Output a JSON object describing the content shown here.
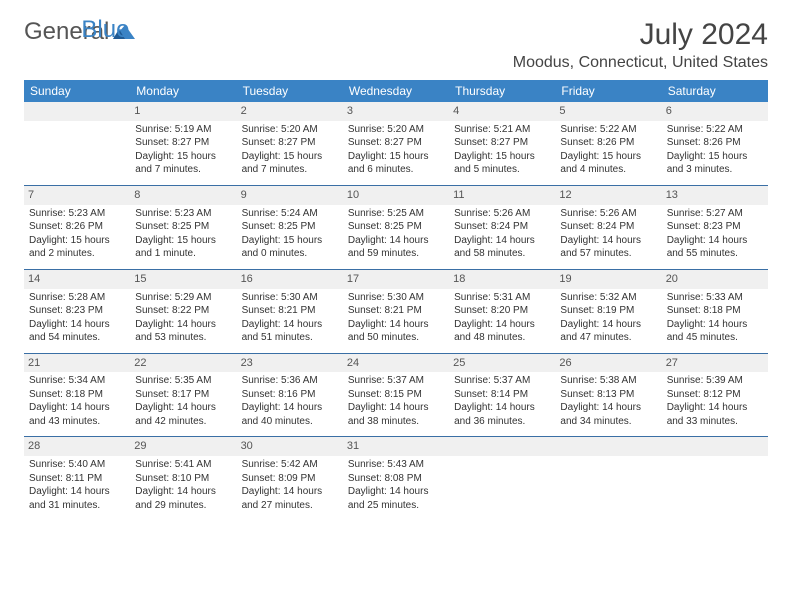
{
  "logo": {
    "word1": "General",
    "word2": "Blue"
  },
  "title": "July 2024",
  "location": "Moodus, Connecticut, United States",
  "colors": {
    "header_bg": "#3a83c5",
    "header_fg": "#ffffff",
    "rule": "#3a6fa5",
    "daynum_bg": "#f0f0f0",
    "text": "#333333",
    "logo_blue": "#3a83c5"
  },
  "daysOfWeek": [
    "Sunday",
    "Monday",
    "Tuesday",
    "Wednesday",
    "Thursday",
    "Friday",
    "Saturday"
  ],
  "weeks": [
    [
      {
        "num": "",
        "lines": []
      },
      {
        "num": "1",
        "lines": [
          "Sunrise: 5:19 AM",
          "Sunset: 8:27 PM",
          "Daylight: 15 hours and 7 minutes."
        ]
      },
      {
        "num": "2",
        "lines": [
          "Sunrise: 5:20 AM",
          "Sunset: 8:27 PM",
          "Daylight: 15 hours and 7 minutes."
        ]
      },
      {
        "num": "3",
        "lines": [
          "Sunrise: 5:20 AM",
          "Sunset: 8:27 PM",
          "Daylight: 15 hours and 6 minutes."
        ]
      },
      {
        "num": "4",
        "lines": [
          "Sunrise: 5:21 AM",
          "Sunset: 8:27 PM",
          "Daylight: 15 hours and 5 minutes."
        ]
      },
      {
        "num": "5",
        "lines": [
          "Sunrise: 5:22 AM",
          "Sunset: 8:26 PM",
          "Daylight: 15 hours and 4 minutes."
        ]
      },
      {
        "num": "6",
        "lines": [
          "Sunrise: 5:22 AM",
          "Sunset: 8:26 PM",
          "Daylight: 15 hours and 3 minutes."
        ]
      }
    ],
    [
      {
        "num": "7",
        "lines": [
          "Sunrise: 5:23 AM",
          "Sunset: 8:26 PM",
          "Daylight: 15 hours and 2 minutes."
        ]
      },
      {
        "num": "8",
        "lines": [
          "Sunrise: 5:23 AM",
          "Sunset: 8:25 PM",
          "Daylight: 15 hours and 1 minute."
        ]
      },
      {
        "num": "9",
        "lines": [
          "Sunrise: 5:24 AM",
          "Sunset: 8:25 PM",
          "Daylight: 15 hours and 0 minutes."
        ]
      },
      {
        "num": "10",
        "lines": [
          "Sunrise: 5:25 AM",
          "Sunset: 8:25 PM",
          "Daylight: 14 hours and 59 minutes."
        ]
      },
      {
        "num": "11",
        "lines": [
          "Sunrise: 5:26 AM",
          "Sunset: 8:24 PM",
          "Daylight: 14 hours and 58 minutes."
        ]
      },
      {
        "num": "12",
        "lines": [
          "Sunrise: 5:26 AM",
          "Sunset: 8:24 PM",
          "Daylight: 14 hours and 57 minutes."
        ]
      },
      {
        "num": "13",
        "lines": [
          "Sunrise: 5:27 AM",
          "Sunset: 8:23 PM",
          "Daylight: 14 hours and 55 minutes."
        ]
      }
    ],
    [
      {
        "num": "14",
        "lines": [
          "Sunrise: 5:28 AM",
          "Sunset: 8:23 PM",
          "Daylight: 14 hours and 54 minutes."
        ]
      },
      {
        "num": "15",
        "lines": [
          "Sunrise: 5:29 AM",
          "Sunset: 8:22 PM",
          "Daylight: 14 hours and 53 minutes."
        ]
      },
      {
        "num": "16",
        "lines": [
          "Sunrise: 5:30 AM",
          "Sunset: 8:21 PM",
          "Daylight: 14 hours and 51 minutes."
        ]
      },
      {
        "num": "17",
        "lines": [
          "Sunrise: 5:30 AM",
          "Sunset: 8:21 PM",
          "Daylight: 14 hours and 50 minutes."
        ]
      },
      {
        "num": "18",
        "lines": [
          "Sunrise: 5:31 AM",
          "Sunset: 8:20 PM",
          "Daylight: 14 hours and 48 minutes."
        ]
      },
      {
        "num": "19",
        "lines": [
          "Sunrise: 5:32 AM",
          "Sunset: 8:19 PM",
          "Daylight: 14 hours and 47 minutes."
        ]
      },
      {
        "num": "20",
        "lines": [
          "Sunrise: 5:33 AM",
          "Sunset: 8:18 PM",
          "Daylight: 14 hours and 45 minutes."
        ]
      }
    ],
    [
      {
        "num": "21",
        "lines": [
          "Sunrise: 5:34 AM",
          "Sunset: 8:18 PM",
          "Daylight: 14 hours and 43 minutes."
        ]
      },
      {
        "num": "22",
        "lines": [
          "Sunrise: 5:35 AM",
          "Sunset: 8:17 PM",
          "Daylight: 14 hours and 42 minutes."
        ]
      },
      {
        "num": "23",
        "lines": [
          "Sunrise: 5:36 AM",
          "Sunset: 8:16 PM",
          "Daylight: 14 hours and 40 minutes."
        ]
      },
      {
        "num": "24",
        "lines": [
          "Sunrise: 5:37 AM",
          "Sunset: 8:15 PM",
          "Daylight: 14 hours and 38 minutes."
        ]
      },
      {
        "num": "25",
        "lines": [
          "Sunrise: 5:37 AM",
          "Sunset: 8:14 PM",
          "Daylight: 14 hours and 36 minutes."
        ]
      },
      {
        "num": "26",
        "lines": [
          "Sunrise: 5:38 AM",
          "Sunset: 8:13 PM",
          "Daylight: 14 hours and 34 minutes."
        ]
      },
      {
        "num": "27",
        "lines": [
          "Sunrise: 5:39 AM",
          "Sunset: 8:12 PM",
          "Daylight: 14 hours and 33 minutes."
        ]
      }
    ],
    [
      {
        "num": "28",
        "lines": [
          "Sunrise: 5:40 AM",
          "Sunset: 8:11 PM",
          "Daylight: 14 hours and 31 minutes."
        ]
      },
      {
        "num": "29",
        "lines": [
          "Sunrise: 5:41 AM",
          "Sunset: 8:10 PM",
          "Daylight: 14 hours and 29 minutes."
        ]
      },
      {
        "num": "30",
        "lines": [
          "Sunrise: 5:42 AM",
          "Sunset: 8:09 PM",
          "Daylight: 14 hours and 27 minutes."
        ]
      },
      {
        "num": "31",
        "lines": [
          "Sunrise: 5:43 AM",
          "Sunset: 8:08 PM",
          "Daylight: 14 hours and 25 minutes."
        ]
      },
      {
        "num": "",
        "lines": []
      },
      {
        "num": "",
        "lines": []
      },
      {
        "num": "",
        "lines": []
      }
    ]
  ]
}
